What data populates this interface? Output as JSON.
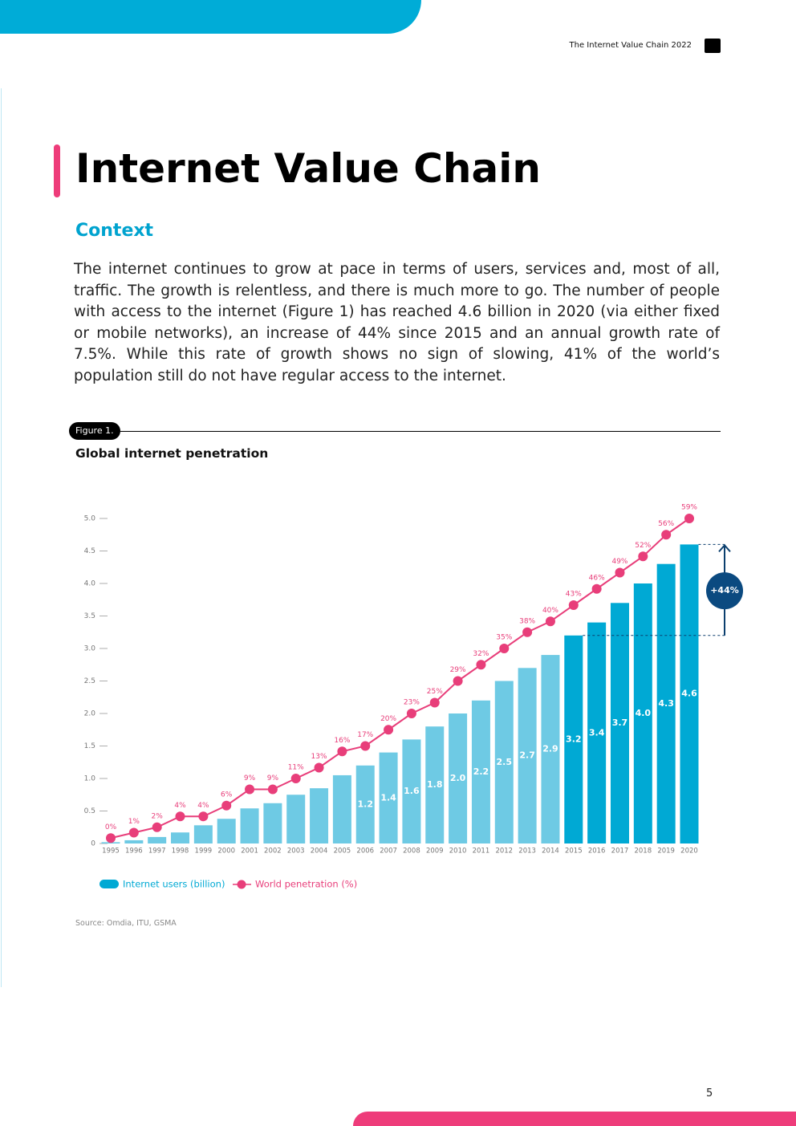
{
  "header": {
    "publication": "The Internet Value Chain 2022"
  },
  "title": "Internet Value Chain",
  "section": "Context",
  "body": "The internet continues to grow at pace in terms of users, services and, most of all, traffic. The growth is relentless, and there is much more to go. The number of people with access to the internet (Figure 1) has reached 4.6 billion in 2020 (via either fixed or mobile networks), an increase of 44% since 2015 and an annual growth rate of 7.5%. While this rate of growth shows no sign of slowing, 41% of the world’s population still do not have regular access to the internet.",
  "figure": {
    "label": "Figure 1."
  },
  "page_number": 5,
  "chart_data": {
    "type": "bar",
    "title": "Global internet penetration",
    "source": "Source: Omdia, ITU, GSMA",
    "categories": [
      "1995",
      "1996",
      "1997",
      "1998",
      "1999",
      "2000",
      "2001",
      "2002",
      "2003",
      "2004",
      "2005",
      "2006",
      "2007",
      "2008",
      "2009",
      "2010",
      "2011",
      "2012",
      "2013",
      "2014",
      "2015",
      "2016",
      "2017",
      "2018",
      "2019",
      "2020"
    ],
    "series": [
      {
        "name": "Internet users (billion)",
        "color": "#00a9d4",
        "colors": [
          "#6ecae4",
          "#6ecae4",
          "#6ecae4",
          "#6ecae4",
          "#6ecae4",
          "#6ecae4",
          "#6ecae4",
          "#6ecae4",
          "#6ecae4",
          "#6ecae4",
          "#6ecae4",
          "#6ecae4",
          "#6ecae4",
          "#6ecae4",
          "#6ecae4",
          "#6ecae4",
          "#6ecae4",
          "#6ecae4",
          "#6ecae4",
          "#6ecae4",
          "#00a9d4",
          "#00a9d4",
          "#00a9d4",
          "#00a9d4",
          "#00a9d4",
          "#00a9d4"
        ],
        "values": [
          0.02,
          0.05,
          0.1,
          0.17,
          0.28,
          0.38,
          0.54,
          0.62,
          0.75,
          0.85,
          1.05,
          1.2,
          1.4,
          1.6,
          1.8,
          2.0,
          2.2,
          2.5,
          2.7,
          2.9,
          3.2,
          3.4,
          3.7,
          4.0,
          4.3,
          4.6
        ],
        "value_labels": [
          null,
          null,
          null,
          null,
          null,
          null,
          null,
          null,
          null,
          null,
          null,
          "1.2",
          "1.4",
          "1.6",
          "1.8",
          "2.0",
          "2.2",
          "2.5",
          "2.7",
          "2.9",
          "3.2",
          "3.4",
          "3.7",
          "4.0",
          "4.3",
          "4.6"
        ]
      },
      {
        "name": "World penetration (%)",
        "type": "line",
        "axis": "y2",
        "color": "#e83e7a",
        "values": [
          0,
          1,
          2,
          4,
          4,
          6,
          9,
          9,
          11,
          13,
          16,
          17,
          20,
          23,
          25,
          29,
          32,
          35,
          38,
          40,
          43,
          46,
          49,
          52,
          56,
          59
        ],
        "value_labels": [
          "0%",
          "1%",
          "2%",
          "4%",
          "4%",
          "6%",
          "9%",
          "9%",
          "11%",
          "13%",
          "16%",
          "17%",
          "20%",
          "23%",
          "25%",
          "29%",
          "32%",
          "35%",
          "38%",
          "40%",
          "43%",
          "46%",
          "49%",
          "52%",
          "56%",
          "59%"
        ]
      }
    ],
    "ylim": [
      0,
      5
    ],
    "yticks": [
      {
        "value": 0,
        "label": "0"
      },
      0.5,
      {
        "value": 1,
        "label": "1.0"
      },
      1.5,
      {
        "value": 2,
        "label": "2.0"
      },
      2.5,
      {
        "value": 3,
        "label": "3.0"
      },
      3.5,
      {
        "value": 4,
        "label": "4.0"
      },
      4.5,
      {
        "value": 5,
        "label": "5.0"
      }
    ],
    "y2lim": [
      -1,
      59
    ],
    "annotation": "+44%"
  }
}
